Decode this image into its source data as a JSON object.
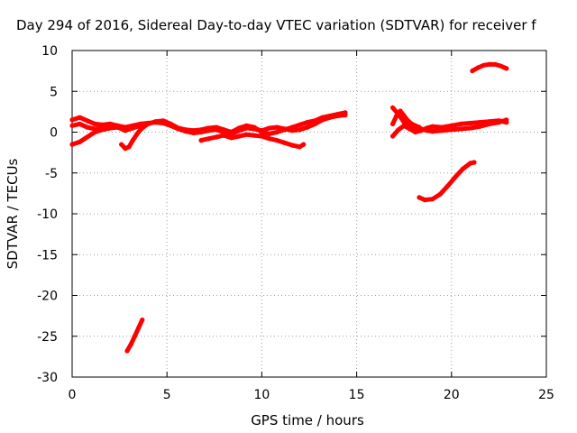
{
  "chart_data": {
    "type": "scatter",
    "title": "Day 294 of 2016, Sidereal Day-to-day VTEC variation (SDTVAR) for receiver f",
    "xlabel": "GPS time / hours",
    "ylabel": "SDTVAR / TECUs",
    "xlim": [
      0,
      25
    ],
    "ylim": [
      -30,
      10
    ],
    "xticks": [
      "0",
      "5",
      "10",
      "15",
      "20",
      "25"
    ],
    "yticks": [
      "10",
      "5",
      "0",
      "-5",
      "-10",
      "-15",
      "-20",
      "-25",
      "-30"
    ],
    "grid": true,
    "color": "#ff0000",
    "series": [
      {
        "x": [
          0,
          0.4,
          0.8,
          1.2,
          1.6,
          2.0,
          2.4,
          2.8,
          3.2,
          3.6,
          4.0,
          4.4,
          4.8,
          5.2,
          5.6,
          6.0,
          6.4,
          6.8,
          7.2,
          7.6,
          8.0,
          8.4,
          8.8,
          9.2,
          9.6,
          10.0,
          10.4,
          10.8,
          11.2,
          11.6,
          12.0,
          12.4,
          12.8,
          13.2,
          13.6,
          14.0,
          14.4
        ],
        "y": [
          1.5,
          1.8,
          1.4,
          1.0,
          0.9,
          1.0,
          0.8,
          0.6,
          0.8,
          1.0,
          1.1,
          1.2,
          1.1,
          0.8,
          0.4,
          0.1,
          -0.1,
          0.0,
          0.2,
          0.3,
          0.0,
          -0.2,
          0.2,
          0.5,
          0.4,
          0.2,
          0.5,
          0.6,
          0.4,
          0.2,
          0.3,
          0.6,
          1.0,
          1.5,
          1.8,
          2.0,
          2.1
        ]
      },
      {
        "x": [
          0,
          0.4,
          0.8,
          1.2,
          1.6,
          2.0,
          2.4,
          2.8,
          3.2,
          3.6,
          4.0,
          4.4,
          4.8,
          5.2,
          5.6,
          6.0,
          6.4,
          6.8,
          7.2,
          7.6,
          8.0,
          8.4,
          8.8,
          9.2,
          9.6,
          10.0,
          10.4,
          10.8,
          11.2,
          11.6,
          12.0,
          12.4,
          12.8,
          13.2,
          13.6,
          14.0,
          14.4
        ],
        "y": [
          0.8,
          1.0,
          0.6,
          0.4,
          0.5,
          0.8,
          0.6,
          0.2,
          0.5,
          0.8,
          1.0,
          1.3,
          1.4,
          1.0,
          0.5,
          0.3,
          0.2,
          0.3,
          0.5,
          0.6,
          0.3,
          0.0,
          0.5,
          0.8,
          0.6,
          0.0,
          -0.2,
          0.0,
          0.3,
          0.6,
          0.9,
          1.2,
          1.4,
          1.8,
          2.0,
          2.2,
          2.4
        ]
      },
      {
        "x": [
          0,
          0.4,
          0.8,
          1.2,
          1.6,
          2.0,
          2.4
        ],
        "y": [
          -1.5,
          -1.2,
          -0.6,
          0.0,
          0.3,
          0.5,
          0.6
        ]
      },
      {
        "x": [
          2.6,
          2.8,
          3.0,
          3.2,
          3.4,
          3.6,
          3.8,
          4.0
        ],
        "y": [
          -1.5,
          -2.0,
          -1.8,
          -1.0,
          -0.3,
          0.3,
          0.7,
          1.0
        ]
      },
      {
        "x": [
          6.8,
          7.2,
          7.6,
          8.0,
          8.4,
          8.8,
          9.2,
          9.6,
          10.0,
          10.4,
          10.8,
          11.2,
          11.6,
          12.0,
          12.2
        ],
        "y": [
          -1.0,
          -0.8,
          -0.6,
          -0.4,
          -0.7,
          -0.5,
          -0.3,
          -0.4,
          -0.5,
          -0.8,
          -1.0,
          -1.3,
          -1.6,
          -1.8,
          -1.5
        ]
      },
      {
        "x": [
          2.9,
          3.1,
          3.3,
          3.5,
          3.7
        ],
        "y": [
          -26.8,
          -26.0,
          -25.0,
          -24.0,
          -23.0
        ]
      },
      {
        "x": [
          16.9,
          17.2,
          17.5,
          17.8,
          18.1,
          18.4,
          18.7,
          19.0,
          19.5,
          20.0,
          20.5,
          21.0,
          21.5,
          22.0,
          22.5,
          22.9
        ],
        "y": [
          3.0,
          2.2,
          1.2,
          0.8,
          0.5,
          0.4,
          0.2,
          0.1,
          0.2,
          0.3,
          0.4,
          0.5,
          0.7,
          1.0,
          1.2,
          1.5
        ]
      },
      {
        "x": [
          16.9,
          17.2,
          17.5,
          17.8,
          18.1,
          18.4,
          18.7,
          19.0,
          19.5,
          20.0,
          20.5,
          21.0,
          21.5,
          22.0,
          22.5,
          22.9
        ],
        "y": [
          -0.5,
          0.3,
          0.8,
          0.4,
          0.0,
          0.2,
          0.5,
          0.7,
          0.6,
          0.8,
          1.0,
          1.1,
          1.2,
          1.3,
          1.4,
          1.2
        ]
      },
      {
        "x": [
          16.9,
          17.1,
          17.3,
          17.5,
          17.7,
          17.9,
          18.1,
          18.3
        ],
        "y": [
          1.0,
          2.0,
          2.6,
          2.0,
          1.4,
          1.0,
          0.8,
          0.6
        ]
      },
      {
        "x": [
          18.3,
          18.6,
          19.0,
          19.4,
          19.8,
          20.2,
          20.6,
          21.0,
          21.2
        ],
        "y": [
          -8.0,
          -8.3,
          -8.2,
          -7.6,
          -6.6,
          -5.5,
          -4.5,
          -3.8,
          -3.7
        ]
      },
      {
        "x": [
          21.1,
          21.4,
          21.7,
          22.0,
          22.3,
          22.6,
          22.9
        ],
        "y": [
          7.5,
          7.9,
          8.2,
          8.3,
          8.3,
          8.1,
          7.8
        ]
      }
    ]
  }
}
